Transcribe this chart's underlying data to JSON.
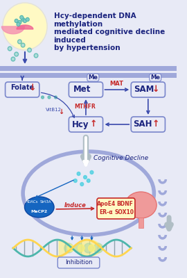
{
  "bg_color": "#e8eaf6",
  "title_text": "Hcy-dependent DNA methylation\nmediated cognitive decline induced\nby hypertension",
  "title_color": "#1a237e",
  "title_fontsize": 7.5,
  "box_color": "#c5cae9",
  "box_border": "#5c6bc0",
  "box_text_color": "#1a237e",
  "arrow_color": "#3949ab",
  "red_arrow_color": "#c62828",
  "met_label": "Met",
  "sam_label": "SAM",
  "hcy_label": "Hcy",
  "sah_label": "SAH",
  "folate_label": "Folate",
  "mat_label": "MAT",
  "mthfr_label": "MTHFR",
  "vitb12_label": "VitB12",
  "me_label": "Me",
  "induce_label": "Induce",
  "inhibition_label": "Inhibition",
  "cognitive_decline_label": "Cognitive Decline",
  "gene_box_color": "#ffccbc",
  "gene_text_color": "#c62828",
  "gene_labels": [
    "ApoE4",
    "BDNF",
    "ER-α",
    "SOX10"
  ],
  "membrane_color_top": "#9fa8da",
  "membrane_color_bottom": "#b0bec5",
  "cell_membrane_color": "#9fa8da"
}
